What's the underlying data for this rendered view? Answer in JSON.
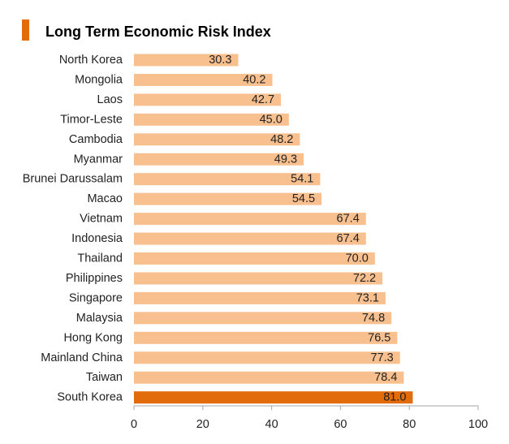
{
  "chart_data": {
    "type": "bar",
    "orientation": "horizontal",
    "title": "Long Term Economic Risk Index",
    "categories": [
      "North Korea",
      "Mongolia",
      "Laos",
      "Timor-Leste",
      "Cambodia",
      "Myanmar",
      "Brunei Darussalam",
      "Macao",
      "Vietnam",
      "Indonesia",
      "Thailand",
      "Philippines",
      "Singapore",
      "Malaysia",
      "Hong Kong",
      "Mainland China",
      "Taiwan",
      "South Korea"
    ],
    "values": [
      30.3,
      40.2,
      42.7,
      45.0,
      48.2,
      49.3,
      54.1,
      54.5,
      67.4,
      67.4,
      70.0,
      72.2,
      73.1,
      74.8,
      76.5,
      77.3,
      78.4,
      81.0
    ],
    "value_labels": [
      "30.3",
      "40.2",
      "42.7",
      "45.0",
      "48.2",
      "49.3",
      "54.1",
      "54.5",
      "67.4",
      "67.4",
      "70.0",
      "72.2",
      "73.1",
      "74.8",
      "76.5",
      "77.3",
      "78.4",
      "81.0"
    ],
    "highlight_category": "South Korea",
    "xlim": [
      0,
      100
    ],
    "xticks": [
      0,
      20,
      40,
      60,
      80,
      100
    ],
    "xtick_labels": [
      "0",
      "20",
      "40",
      "60",
      "80",
      "100"
    ],
    "xlabel": "",
    "ylabel": "",
    "grid": false,
    "colors": {
      "bar": "#F9C08F",
      "highlight_bar": "#E36C0A",
      "title_marker": "#E36C0A",
      "axis": "#A6A6A6"
    }
  }
}
